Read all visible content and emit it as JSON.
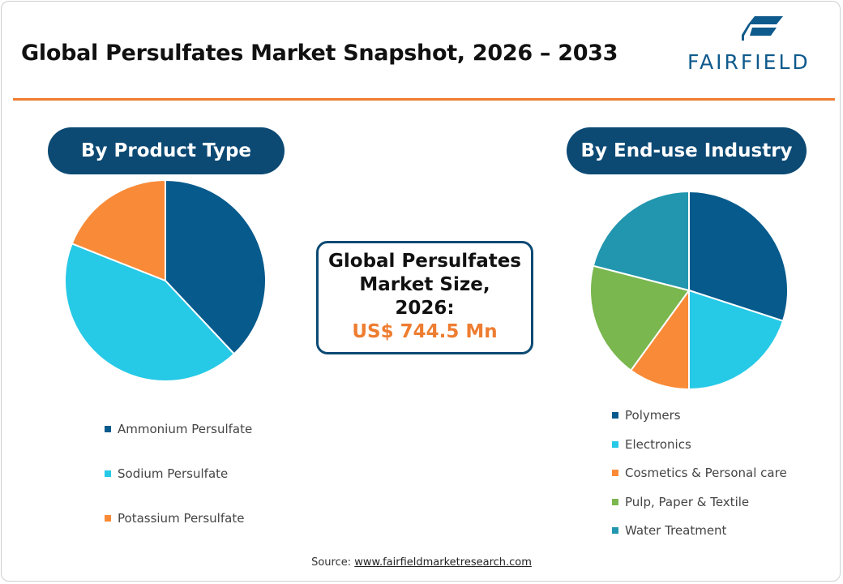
{
  "header": {
    "title": "Global Persulfates Market Snapshot, 2026 – 2033",
    "logo_text": "FAIRFIELD"
  },
  "center": {
    "line1": "Global Persulfates",
    "line2": "Market Size,",
    "line3": "2026:",
    "value": "US$ 744.5 Mn"
  },
  "source": {
    "label": "Source:",
    "link": "www.fairfieldmarketresearch.com"
  },
  "colors": {
    "accent": "#ee7d31",
    "navy": "#0c4a74"
  },
  "chart_data": [
    {
      "type": "pie",
      "title": "By Product Type",
      "categories": [
        "Ammonium Persulfate",
        "Sodium Persulfate",
        "Potassium Persulfate"
      ],
      "values": [
        38,
        43,
        19
      ],
      "colors": [
        "#065a8c",
        "#26c9e6",
        "#f98a37"
      ],
      "legend": "bottom"
    },
    {
      "type": "pie",
      "title": "By End-use Industry",
      "categories": [
        "Polymers",
        "Electronics",
        "Cosmetics & Personal care",
        "Pulp, Paper & Textile",
        "Water Treatment"
      ],
      "values": [
        30,
        20,
        10,
        19,
        21
      ],
      "colors": [
        "#065a8c",
        "#26c9e6",
        "#f98a37",
        "#7ab74f",
        "#2196ae"
      ],
      "legend": "bottom"
    }
  ]
}
